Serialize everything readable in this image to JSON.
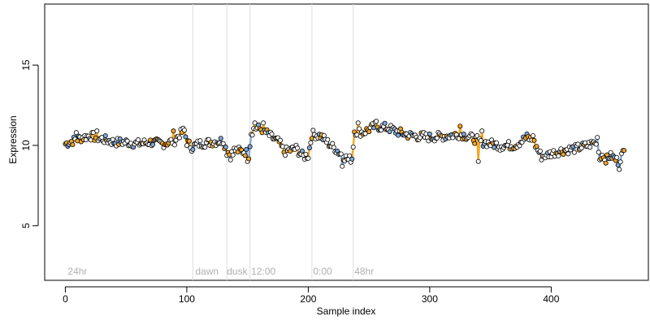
{
  "chart_data": {
    "type": "scatter",
    "xlabel": "Sample index",
    "ylabel": "Expression",
    "xlim": [
      -17,
      480
    ],
    "ylim": [
      1.6,
      18.8
    ],
    "xticks": [
      0,
      100,
      200,
      300,
      400
    ],
    "yticks": [
      5,
      10,
      15
    ],
    "grid": false,
    "vlines": [
      105,
      133,
      152,
      203,
      237
    ],
    "annotations": [
      {
        "x": 2,
        "label": "24hr"
      },
      {
        "x": 107,
        "label": "dawn"
      },
      {
        "x": 133,
        "label": "dusk"
      },
      {
        "x": 153,
        "label": "12:00"
      },
      {
        "x": 204,
        "label": "0:00"
      },
      {
        "x": 238,
        "label": "48hr"
      }
    ],
    "anchors": [
      [
        0,
        10.1
      ],
      [
        10,
        10.4
      ],
      [
        20,
        10.6
      ],
      [
        30,
        10.4
      ],
      [
        40,
        10.2
      ],
      [
        50,
        10.2
      ],
      [
        60,
        10.1
      ],
      [
        70,
        10.2
      ],
      [
        80,
        10.1
      ],
      [
        90,
        10.3
      ],
      [
        95,
        10.8
      ],
      [
        98,
        10.9
      ],
      [
        100,
        10.2
      ],
      [
        104,
        9.9
      ],
      [
        110,
        10.1
      ],
      [
        120,
        10.2
      ],
      [
        130,
        10.3
      ],
      [
        133,
        9.6
      ],
      [
        140,
        9.7
      ],
      [
        148,
        9.6
      ],
      [
        151,
        9.4
      ],
      [
        153,
        10.8
      ],
      [
        156,
        11.1
      ],
      [
        162,
        11.0
      ],
      [
        170,
        10.5
      ],
      [
        176,
        10.2
      ],
      [
        180,
        9.6
      ],
      [
        190,
        9.8
      ],
      [
        196,
        9.3
      ],
      [
        200,
        9.4
      ],
      [
        203,
        10.7
      ],
      [
        210,
        10.6
      ],
      [
        220,
        9.9
      ],
      [
        228,
        9.4
      ],
      [
        233,
        9.1
      ],
      [
        236,
        9.2
      ],
      [
        238,
        10.9
      ],
      [
        245,
        10.8
      ],
      [
        255,
        11.2
      ],
      [
        265,
        11.1
      ],
      [
        275,
        10.8
      ],
      [
        285,
        10.6
      ],
      [
        300,
        10.5
      ],
      [
        315,
        10.6
      ],
      [
        325,
        10.7
      ],
      [
        330,
        10.6
      ],
      [
        340,
        10.3
      ],
      [
        350,
        10.1
      ],
      [
        360,
        10.0
      ],
      [
        370,
        10.0
      ],
      [
        380,
        10.5
      ],
      [
        385,
        10.3
      ],
      [
        392,
        9.3
      ],
      [
        400,
        9.5
      ],
      [
        410,
        9.7
      ],
      [
        420,
        9.8
      ],
      [
        430,
        10.0
      ],
      [
        436,
        10.2
      ],
      [
        440,
        9.4
      ],
      [
        450,
        9.3
      ],
      [
        455,
        9.0
      ],
      [
        460,
        9.6
      ]
    ],
    "outliers": [
      [
        9,
        10.8
      ],
      [
        26,
        10.9
      ],
      [
        89,
        10.9
      ],
      [
        95,
        11.0
      ],
      [
        136,
        9.1
      ],
      [
        150,
        9.0
      ],
      [
        156,
        11.4
      ],
      [
        163,
        11.4
      ],
      [
        200,
        9.2
      ],
      [
        222,
        9.6
      ],
      [
        228,
        8.7
      ],
      [
        241,
        11.4
      ],
      [
        256,
        11.5
      ],
      [
        295,
        10.8
      ],
      [
        325,
        11.2
      ],
      [
        336,
        10.3
      ],
      [
        340,
        9.0
      ],
      [
        343,
        10.9
      ],
      [
        358,
        9.7
      ],
      [
        385,
        10.6
      ],
      [
        392,
        9.1
      ],
      [
        396,
        9.4
      ],
      [
        438,
        10.5
      ],
      [
        440,
        9.1
      ],
      [
        445,
        8.9
      ],
      [
        450,
        9.2
      ],
      [
        456,
        8.5
      ]
    ],
    "n_points": 461,
    "point_fill_colors": [
      "#f5a623",
      "#7fa8d8",
      "#ffffff"
    ],
    "series_line_colors": [
      "#f5a623",
      "#7fa8d8"
    ],
    "segment_colors": [
      [
        0,
        12,
        "#7fa8d8"
      ],
      [
        12,
        30,
        "#f5a623"
      ],
      [
        30,
        70,
        "#7fa8d8"
      ],
      [
        70,
        88,
        "#7fa8d8"
      ],
      [
        88,
        104,
        "#f5a623"
      ],
      [
        104,
        132,
        "#7fa8d8"
      ],
      [
        132,
        153,
        "#7fa8d8"
      ],
      [
        153,
        178,
        "#f5a623"
      ],
      [
        178,
        204,
        "#f5a623"
      ],
      [
        204,
        236,
        "#7fa8d8"
      ],
      [
        236,
        270,
        "#f5a623"
      ],
      [
        270,
        300,
        "#7fa8d8"
      ],
      [
        300,
        350,
        "#f5a623"
      ],
      [
        350,
        372,
        "#7fa8d8"
      ],
      [
        372,
        392,
        "#f5a623"
      ],
      [
        392,
        440,
        "#7fa8d8"
      ],
      [
        440,
        461,
        "#7fa8d8"
      ]
    ]
  }
}
